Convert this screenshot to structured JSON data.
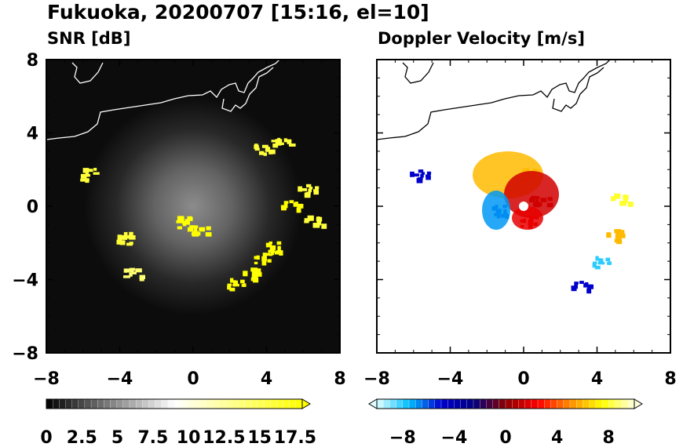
{
  "figure": {
    "title": "Fukuoka, 20200707 [15:16, el=10]"
  },
  "chart_data": [
    {
      "type": "heatmap",
      "title": "SNR [dB]",
      "xlim": [
        -8,
        8
      ],
      "ylim": [
        -8,
        8
      ],
      "xticks": [
        "−8",
        "−4",
        "0",
        "4",
        "8"
      ],
      "yticks": [
        "8",
        "4",
        "0",
        "−4",
        "−8"
      ],
      "grid": false,
      "background": "#000000",
      "colorbar": {
        "range": [
          0,
          18
        ],
        "extend": "max",
        "ticks": [
          "0",
          "2.5",
          "5",
          "7.5",
          "10",
          "12.5",
          "15",
          "17.5"
        ],
        "colors": [
          "#000000",
          "#ffffff",
          "#ffff00"
        ]
      },
      "echo_regions": [
        {
          "x": -0.5,
          "y": -0.8,
          "value": 18
        },
        {
          "x": 0.2,
          "y": -1.2,
          "value": 18
        },
        {
          "x": 4.5,
          "y": -2.2,
          "value": 18
        },
        {
          "x": 3.8,
          "y": -2.8,
          "value": 18
        },
        {
          "x": 3.2,
          "y": -3.6,
          "value": 18
        },
        {
          "x": 2.2,
          "y": -4.2,
          "value": 18
        },
        {
          "x": 5.2,
          "y": 0.2,
          "value": 18
        },
        {
          "x": 6.2,
          "y": 1.0,
          "value": 16
        },
        {
          "x": 6.6,
          "y": -0.8,
          "value": 16
        },
        {
          "x": 3.8,
          "y": 3.2,
          "value": 16
        },
        {
          "x": 4.7,
          "y": 3.6,
          "value": 16
        },
        {
          "x": -5.6,
          "y": 1.8,
          "value": 16
        },
        {
          "x": -4.0,
          "y": -1.7,
          "value": 16
        },
        {
          "x": -3.3,
          "y": -3.6,
          "value": 14
        }
      ]
    },
    {
      "type": "heatmap",
      "title": "Doppler Velocity [m/s]",
      "xlim": [
        -8,
        8
      ],
      "ylim": [
        -8,
        8
      ],
      "xticks": [
        "−8",
        "−4",
        "0",
        "4",
        "8"
      ],
      "yticks": [],
      "grid": false,
      "background": "#ffffff",
      "colorbar": {
        "range": [
          -10,
          10
        ],
        "extend": "both",
        "ticks": [
          "−8",
          "−4",
          "0",
          "4",
          "8"
        ],
        "colors": [
          "#e0ffff",
          "#00bfff",
          "#0000cd",
          "#000080",
          "#8b0000",
          "#ff0000",
          "#ff8c00",
          "#ffff00",
          "#ffffe0"
        ]
      },
      "echo_regions": [
        {
          "x": 0.3,
          "y": 1.8,
          "value": 6
        },
        {
          "x": 0.8,
          "y": 0.4,
          "value": 1
        },
        {
          "x": -1.2,
          "y": -0.2,
          "value": -6
        },
        {
          "x": 0.3,
          "y": -0.8,
          "value": 2
        },
        {
          "x": 5.0,
          "y": -1.5,
          "value": 6
        },
        {
          "x": 4.1,
          "y": -3.0,
          "value": -8
        },
        {
          "x": 3.0,
          "y": -4.2,
          "value": -5
        },
        {
          "x": -5.7,
          "y": 1.8,
          "value": -5
        },
        {
          "x": 5.3,
          "y": 0.4,
          "value": 8
        }
      ]
    }
  ]
}
